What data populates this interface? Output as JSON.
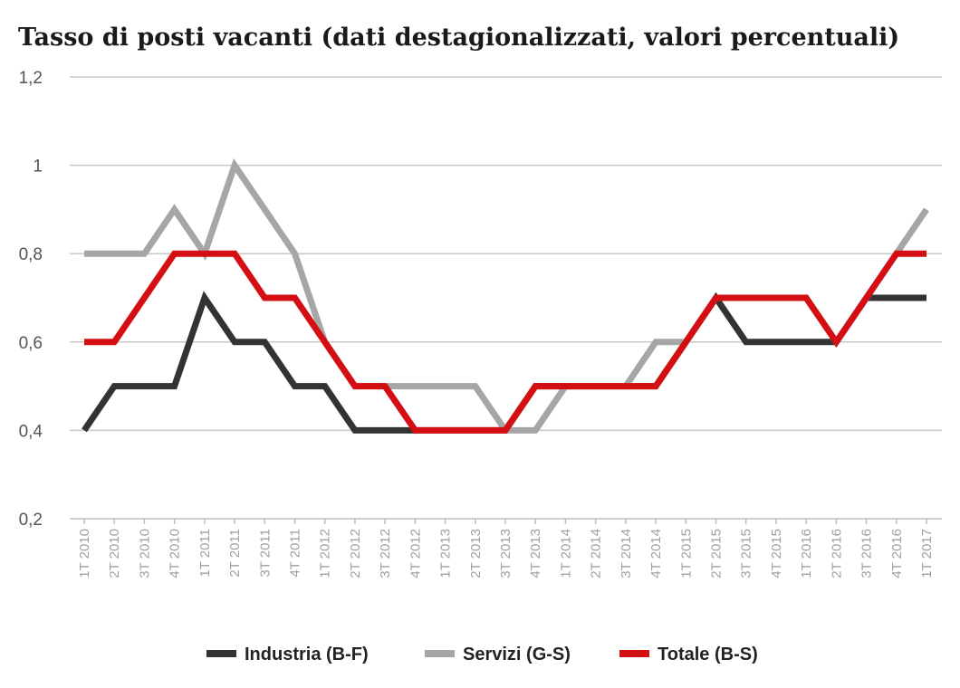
{
  "chart_data": {
    "type": "line",
    "title": "Tasso di posti vacanti (dati destagionalizzati, valori percentuali)",
    "xlabel": "",
    "ylabel": "",
    "ylim": [
      0.2,
      1.2
    ],
    "yticks": [
      "0,2",
      "0,4",
      "0,6",
      "0,8",
      "1",
      "1,2"
    ],
    "ytick_values": [
      0.2,
      0.4,
      0.6,
      0.8,
      1.0,
      1.2
    ],
    "grid": true,
    "legend_position": "bottom",
    "categories": [
      "1T 2010",
      "2T 2010",
      "3T 2010",
      "4T 2010",
      "1T 2011",
      "2T 2011",
      "3T 2011",
      "4T 2011",
      "1T 2012",
      "2T 2012",
      "3T 2012",
      "4T 2012",
      "1T 2013",
      "2T 2013",
      "3T 2013",
      "4T 2013",
      "1T 2014",
      "2T 2014",
      "3T 2014",
      "4T 2014",
      "1T 2015",
      "2T 2015",
      "3T 2015",
      "4T 2015",
      "1T 2016",
      "2T 2016",
      "3T 2016",
      "4T 2016",
      "1T 2017"
    ],
    "series": [
      {
        "name": "Industria (B-F)",
        "color": "#333333",
        "values": [
          0.4,
          0.5,
          0.5,
          0.5,
          0.7,
          0.6,
          0.6,
          0.5,
          0.5,
          0.4,
          0.4,
          0.4,
          0.4,
          0.4,
          0.4,
          0.5,
          0.5,
          0.5,
          0.5,
          0.5,
          0.6,
          0.7,
          0.6,
          0.6,
          0.6,
          0.6,
          0.7,
          0.7,
          0.7
        ]
      },
      {
        "name": "Servizi (G-S)",
        "color": "#a6a6a6",
        "values": [
          0.8,
          0.8,
          0.8,
          0.9,
          0.8,
          1.0,
          0.9,
          0.8,
          0.6,
          0.5,
          0.5,
          0.5,
          0.5,
          0.5,
          0.4,
          0.4,
          0.5,
          0.5,
          0.5,
          0.6,
          0.6,
          0.7,
          0.7,
          0.7,
          0.7,
          0.6,
          0.7,
          0.8,
          0.9
        ]
      },
      {
        "name": "Totale (B-S)",
        "color": "#d40f14",
        "values": [
          0.6,
          0.6,
          0.7,
          0.8,
          0.8,
          0.8,
          0.7,
          0.7,
          0.6,
          0.5,
          0.5,
          0.4,
          0.4,
          0.4,
          0.4,
          0.5,
          0.5,
          0.5,
          0.5,
          0.5,
          0.6,
          0.7,
          0.7,
          0.7,
          0.7,
          0.6,
          0.7,
          0.8,
          0.8
        ]
      }
    ]
  }
}
